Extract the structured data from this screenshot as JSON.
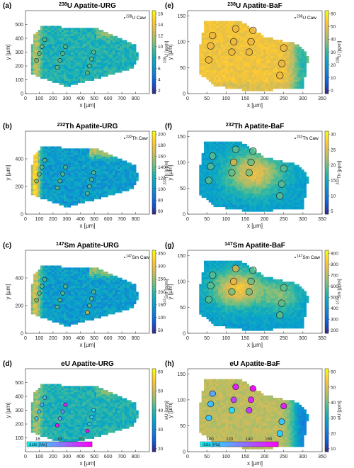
{
  "chart_data": [
    {
      "id": "a",
      "type": "heatmap",
      "panel_label": "(a)",
      "title_iso": "238",
      "title_rest": "U Apatite-URG",
      "xlabel": "x [µm]",
      "ylabel": "y [µm]",
      "xlim": [
        0,
        900
      ],
      "xticks": [
        0,
        100,
        200,
        300,
        400,
        500,
        600,
        700,
        800
      ],
      "ylim": [
        0,
        600
      ],
      "yticks": [
        0,
        100,
        200,
        300,
        400,
        500
      ],
      "colorbar": {
        "label": "U [ppm]",
        "label_iso": "238",
        "ticks": [
          2,
          4,
          6,
          8,
          10,
          12,
          14,
          16
        ]
      },
      "annotation_iso": "238",
      "annotation_rest": "U Caw",
      "grain_outline": [
        [
          40,
          300
        ],
        [
          60,
          420
        ],
        [
          120,
          490
        ],
        [
          520,
          470
        ],
        [
          800,
          350
        ],
        [
          820,
          260
        ],
        [
          780,
          180
        ],
        [
          300,
          50
        ],
        [
          40,
          140
        ]
      ],
      "spots": [
        {
          "x": 80,
          "y": 240,
          "level": "mid"
        },
        {
          "x": 100,
          "y": 290,
          "level": "mid"
        },
        {
          "x": 120,
          "y": 340,
          "level": "mid"
        },
        {
          "x": 140,
          "y": 390,
          "level": "mid"
        },
        {
          "x": 230,
          "y": 190,
          "level": "mid"
        },
        {
          "x": 250,
          "y": 240,
          "level": "mid"
        },
        {
          "x": 270,
          "y": 290,
          "level": "mid"
        },
        {
          "x": 290,
          "y": 340,
          "level": "mid"
        },
        {
          "x": 450,
          "y": 150,
          "level": "mid"
        },
        {
          "x": 465,
          "y": 200,
          "level": "mid"
        },
        {
          "x": 480,
          "y": 250,
          "level": "mid"
        },
        {
          "x": 495,
          "y": 300,
          "level": "mid"
        }
      ]
    },
    {
      "id": "e",
      "type": "heatmap",
      "panel_label": "(e)",
      "title_iso": "238",
      "title_rest": "U Apatite-BaF",
      "xlabel": "x [µm]",
      "ylabel": "y [µm]",
      "xlim": [
        0,
        350
      ],
      "xticks": [
        0,
        50,
        100,
        150,
        200,
        250,
        300,
        350
      ],
      "ylim": [
        0,
        160
      ],
      "yticks": [
        0,
        50,
        100,
        150
      ],
      "colorbar": {
        "label": "U [ppm]",
        "label_iso": "238",
        "ticks": [
          0,
          10,
          20,
          30,
          40,
          50,
          60
        ]
      },
      "annotation_iso": "238",
      "annotation_rest": "U Caw",
      "grain_outline": [
        [
          30,
          85
        ],
        [
          45,
          140
        ],
        [
          140,
          140
        ],
        [
          200,
          110
        ],
        [
          290,
          95
        ],
        [
          315,
          70
        ],
        [
          300,
          10
        ],
        [
          160,
          5
        ],
        [
          70,
          15
        ],
        [
          30,
          40
        ]
      ],
      "spots": [
        {
          "x": 55,
          "y": 65,
          "level": "high"
        },
        {
          "x": 60,
          "y": 92,
          "level": "high"
        },
        {
          "x": 65,
          "y": 112,
          "level": "high"
        },
        {
          "x": 115,
          "y": 80,
          "level": "high"
        },
        {
          "x": 120,
          "y": 100,
          "level": "high"
        },
        {
          "x": 125,
          "y": 125,
          "level": "high"
        },
        {
          "x": 160,
          "y": 80,
          "level": "high"
        },
        {
          "x": 165,
          "y": 100,
          "level": "high"
        },
        {
          "x": 170,
          "y": 122,
          "level": "high"
        },
        {
          "x": 240,
          "y": 35,
          "level": "high"
        },
        {
          "x": 245,
          "y": 58,
          "level": "high"
        },
        {
          "x": 250,
          "y": 88,
          "level": "high"
        }
      ]
    },
    {
      "id": "b",
      "type": "heatmap",
      "panel_label": "(b)",
      "title_iso": "232",
      "title_rest": "Th Apatite-URG",
      "xlabel": "x [µm]",
      "ylabel": "y [µm]",
      "xlim": [
        0,
        900
      ],
      "xticks": [
        0,
        100,
        200,
        300,
        400,
        500,
        600,
        700,
        800
      ],
      "ylim": [
        0,
        600
      ],
      "yticks": [
        0,
        200,
        400
      ],
      "colorbar": {
        "label": "Th [ppm]",
        "label_iso": "232",
        "ticks": [
          60,
          80,
          100,
          120,
          140,
          160,
          180,
          200
        ]
      },
      "annotation_iso": "232",
      "annotation_rest": "Th Caw",
      "grain_outline": [
        [
          40,
          300
        ],
        [
          60,
          420
        ],
        [
          120,
          490
        ],
        [
          520,
          470
        ],
        [
          800,
          350
        ],
        [
          820,
          260
        ],
        [
          780,
          180
        ],
        [
          300,
          50
        ],
        [
          40,
          140
        ]
      ],
      "spots": [
        {
          "x": 80,
          "y": 240,
          "level": "mid"
        },
        {
          "x": 100,
          "y": 290,
          "level": "mid"
        },
        {
          "x": 120,
          "y": 340,
          "level": "mid"
        },
        {
          "x": 140,
          "y": 390,
          "level": "mid"
        },
        {
          "x": 230,
          "y": 190,
          "level": "mid"
        },
        {
          "x": 250,
          "y": 240,
          "level": "mid"
        },
        {
          "x": 270,
          "y": 290,
          "level": "mid"
        },
        {
          "x": 290,
          "y": 340,
          "level": "mid"
        },
        {
          "x": 450,
          "y": 150,
          "level": "mid"
        },
        {
          "x": 465,
          "y": 200,
          "level": "mid"
        },
        {
          "x": 480,
          "y": 250,
          "level": "mid"
        },
        {
          "x": 495,
          "y": 300,
          "level": "mid"
        }
      ]
    },
    {
      "id": "f",
      "type": "heatmap",
      "panel_label": "(f)",
      "title_iso": "232",
      "title_rest": "Th Apatite-BaF",
      "xlabel": "x [µm]",
      "ylabel": "y [µm]",
      "xlim": [
        0,
        350
      ],
      "xticks": [
        0,
        50,
        100,
        150,
        200,
        250,
        300,
        350
      ],
      "ylim": [
        0,
        160
      ],
      "yticks": [
        0,
        50,
        100,
        150
      ],
      "colorbar": {
        "label": "Th [ppm]",
        "label_iso": "232",
        "ticks": [
          5,
          10,
          15,
          20,
          25,
          30
        ]
      },
      "annotation_iso": "232",
      "annotation_rest": "Th Caw",
      "grain_outline": [
        [
          30,
          85
        ],
        [
          45,
          140
        ],
        [
          140,
          140
        ],
        [
          200,
          110
        ],
        [
          290,
          95
        ],
        [
          315,
          70
        ],
        [
          300,
          10
        ],
        [
          160,
          5
        ],
        [
          70,
          15
        ],
        [
          30,
          40
        ]
      ],
      "spots": [
        {
          "x": 55,
          "y": 65,
          "level": "mid"
        },
        {
          "x": 60,
          "y": 92,
          "level": "mid"
        },
        {
          "x": 65,
          "y": 112,
          "level": "mid"
        },
        {
          "x": 115,
          "y": 80,
          "level": "mid"
        },
        {
          "x": 120,
          "y": 100,
          "level": "high"
        },
        {
          "x": 125,
          "y": 125,
          "level": "mid"
        },
        {
          "x": 160,
          "y": 80,
          "level": "mid"
        },
        {
          "x": 165,
          "y": 100,
          "level": "mid"
        },
        {
          "x": 170,
          "y": 122,
          "level": "mid"
        },
        {
          "x": 240,
          "y": 35,
          "level": "mid"
        },
        {
          "x": 245,
          "y": 58,
          "level": "mid"
        },
        {
          "x": 250,
          "y": 88,
          "level": "mid"
        }
      ]
    },
    {
      "id": "c",
      "type": "heatmap",
      "panel_label": "(c)",
      "title_iso": "147",
      "title_rest": "Sm Apatite-URG",
      "xlabel": "x [µm]",
      "ylabel": "y [µm]",
      "xlim": [
        0,
        900
      ],
      "xticks": [
        0,
        100,
        200,
        300,
        400,
        500,
        600,
        700,
        800
      ],
      "ylim": [
        0,
        600
      ],
      "yticks": [
        0,
        200,
        400
      ],
      "colorbar": {
        "label": "Sm [ppm]",
        "label_iso": "147",
        "ticks": [
          50,
          100,
          150,
          200,
          250,
          300,
          350
        ]
      },
      "annotation_iso": "147",
      "annotation_rest": "Sm Caw",
      "grain_outline": [
        [
          40,
          300
        ],
        [
          60,
          420
        ],
        [
          120,
          490
        ],
        [
          520,
          470
        ],
        [
          800,
          350
        ],
        [
          820,
          260
        ],
        [
          780,
          180
        ],
        [
          300,
          50
        ],
        [
          40,
          140
        ]
      ],
      "spots": [
        {
          "x": 80,
          "y": 240,
          "level": "mid"
        },
        {
          "x": 100,
          "y": 290,
          "level": "mid"
        },
        {
          "x": 120,
          "y": 340,
          "level": "mid"
        },
        {
          "x": 140,
          "y": 390,
          "level": "mid"
        },
        {
          "x": 230,
          "y": 190,
          "level": "mid"
        },
        {
          "x": 250,
          "y": 240,
          "level": "mid"
        },
        {
          "x": 270,
          "y": 290,
          "level": "mid"
        },
        {
          "x": 290,
          "y": 340,
          "level": "mid"
        },
        {
          "x": 450,
          "y": 150,
          "level": "high"
        },
        {
          "x": 465,
          "y": 200,
          "level": "mid"
        },
        {
          "x": 480,
          "y": 250,
          "level": "mid"
        },
        {
          "x": 495,
          "y": 300,
          "level": "mid"
        }
      ]
    },
    {
      "id": "g",
      "type": "heatmap",
      "panel_label": "(g)",
      "title_iso": "147",
      "title_rest": "Sm Apatite-BaF",
      "xlabel": "x [µm]",
      "ylabel": "y [µm]",
      "xlim": [
        0,
        350
      ],
      "xticks": [
        0,
        50,
        100,
        150,
        200,
        250,
        300,
        350
      ],
      "ylim": [
        0,
        160
      ],
      "yticks": [
        0,
        50,
        100,
        150
      ],
      "colorbar": {
        "label": "Sm [ppm]",
        "label_iso": "147",
        "ticks": [
          200,
          300,
          400,
          500,
          600,
          700,
          800,
          900
        ]
      },
      "annotation_iso": "147",
      "annotation_rest": "Sm Caw",
      "grain_outline": [
        [
          30,
          85
        ],
        [
          45,
          140
        ],
        [
          140,
          140
        ],
        [
          200,
          110
        ],
        [
          290,
          95
        ],
        [
          315,
          70
        ],
        [
          300,
          10
        ],
        [
          160,
          5
        ],
        [
          70,
          15
        ],
        [
          30,
          40
        ]
      ],
      "spots": [
        {
          "x": 55,
          "y": 65,
          "level": "mid"
        },
        {
          "x": 60,
          "y": 92,
          "level": "mid"
        },
        {
          "x": 65,
          "y": 112,
          "level": "mid"
        },
        {
          "x": 115,
          "y": 80,
          "level": "mid"
        },
        {
          "x": 120,
          "y": 100,
          "level": "high"
        },
        {
          "x": 125,
          "y": 125,
          "level": "high"
        },
        {
          "x": 160,
          "y": 80,
          "level": "mid"
        },
        {
          "x": 165,
          "y": 100,
          "level": "mid"
        },
        {
          "x": 170,
          "y": 122,
          "level": "mid"
        },
        {
          "x": 240,
          "y": 35,
          "level": "mid"
        },
        {
          "x": 245,
          "y": 58,
          "level": "mid"
        },
        {
          "x": 250,
          "y": 88,
          "level": "mid"
        }
      ]
    },
    {
      "id": "d",
      "type": "heatmap",
      "panel_label": "(d)",
      "title_iso": "",
      "title_rest": "eU Apatite-URG",
      "xlabel": "x [µm]",
      "ylabel": "y [µm]",
      "xlim": [
        0,
        900
      ],
      "xticks": [
        0,
        100,
        200,
        300,
        400,
        500,
        600,
        700,
        800
      ],
      "ylim": [
        0,
        600
      ],
      "yticks": [
        100,
        200,
        300,
        400,
        500
      ],
      "colorbar": {
        "label": "eU [ppm]",
        "label_iso": "",
        "ticks": [
          20,
          30,
          40,
          50,
          60
        ]
      },
      "annotation_iso": "",
      "annotation_rest": "",
      "date_bar": {
        "label": "date [Ma]",
        "ticks": [
          16,
          18,
          20
        ],
        "range": [
          15,
          21
        ]
      },
      "grain_outline": [
        [
          40,
          300
        ],
        [
          60,
          420
        ],
        [
          120,
          490
        ],
        [
          520,
          470
        ],
        [
          800,
          350
        ],
        [
          820,
          260
        ],
        [
          780,
          180
        ],
        [
          300,
          50
        ],
        [
          40,
          140
        ]
      ],
      "spots": [
        {
          "x": 80,
          "y": 240,
          "date": 16.2
        },
        {
          "x": 100,
          "y": 290,
          "date": 16.4
        },
        {
          "x": 120,
          "y": 340,
          "date": 16.8
        },
        {
          "x": 140,
          "y": 390,
          "date": 16.5
        },
        {
          "x": 230,
          "y": 190,
          "date": 20.5
        },
        {
          "x": 250,
          "y": 240,
          "date": 17.2
        },
        {
          "x": 270,
          "y": 290,
          "date": 17.6
        },
        {
          "x": 290,
          "y": 340,
          "date": 20.3
        },
        {
          "x": 450,
          "y": 150,
          "date": 20.6
        },
        {
          "x": 465,
          "y": 200,
          "date": 16.1
        },
        {
          "x": 480,
          "y": 250,
          "date": 16.3
        },
        {
          "x": 495,
          "y": 300,
          "date": 16.0
        }
      ]
    },
    {
      "id": "h",
      "type": "heatmap",
      "panel_label": "(h)",
      "title_iso": "",
      "title_rest": "eU Apatite-BaF",
      "xlabel": "x [µm]",
      "ylabel": "y [µm]",
      "xlim": [
        0,
        350
      ],
      "xticks": [
        0,
        50,
        100,
        150,
        200,
        250,
        300,
        350
      ],
      "ylim": [
        0,
        160
      ],
      "yticks": [
        0,
        50,
        100,
        150
      ],
      "colorbar": {
        "label": "eU [ppm]",
        "label_iso": "",
        "ticks": [
          10,
          20,
          30,
          40,
          50,
          60
        ]
      },
      "annotation_iso": "",
      "annotation_rest": "",
      "date_bar": {
        "label": "date [Ma]",
        "ticks": [
          100,
          120,
          140,
          160
        ],
        "range": [
          90,
          170
        ]
      },
      "grain_outline": [
        [
          30,
          85
        ],
        [
          45,
          140
        ],
        [
          140,
          140
        ],
        [
          200,
          110
        ],
        [
          290,
          95
        ],
        [
          315,
          70
        ],
        [
          300,
          10
        ],
        [
          160,
          5
        ],
        [
          70,
          15
        ],
        [
          30,
          40
        ]
      ],
      "spots": [
        {
          "x": 55,
          "y": 65,
          "date": 108
        },
        {
          "x": 60,
          "y": 92,
          "date": 110
        },
        {
          "x": 65,
          "y": 112,
          "date": 118
        },
        {
          "x": 115,
          "y": 80,
          "date": 100
        },
        {
          "x": 120,
          "y": 100,
          "date": 150
        },
        {
          "x": 125,
          "y": 125,
          "date": 160
        },
        {
          "x": 160,
          "y": 80,
          "date": 152
        },
        {
          "x": 165,
          "y": 100,
          "date": 158
        },
        {
          "x": 170,
          "y": 122,
          "date": 165
        },
        {
          "x": 240,
          "y": 35,
          "date": 105
        },
        {
          "x": 245,
          "y": 58,
          "date": 108
        },
        {
          "x": 250,
          "y": 88,
          "date": 160
        }
      ]
    }
  ],
  "colors": {
    "parula": [
      "#352a87",
      "#0f5cdd",
      "#1481d6",
      "#06a4ca",
      "#2eb7a4",
      "#87bf77",
      "#d1bb59",
      "#fec832",
      "#f9fb0e"
    ],
    "cool": [
      "#00ffff",
      "#ff00ff"
    ],
    "spot_fill_high": "#f0b43c",
    "spot_fill_mid": "#5fbf8a"
  }
}
